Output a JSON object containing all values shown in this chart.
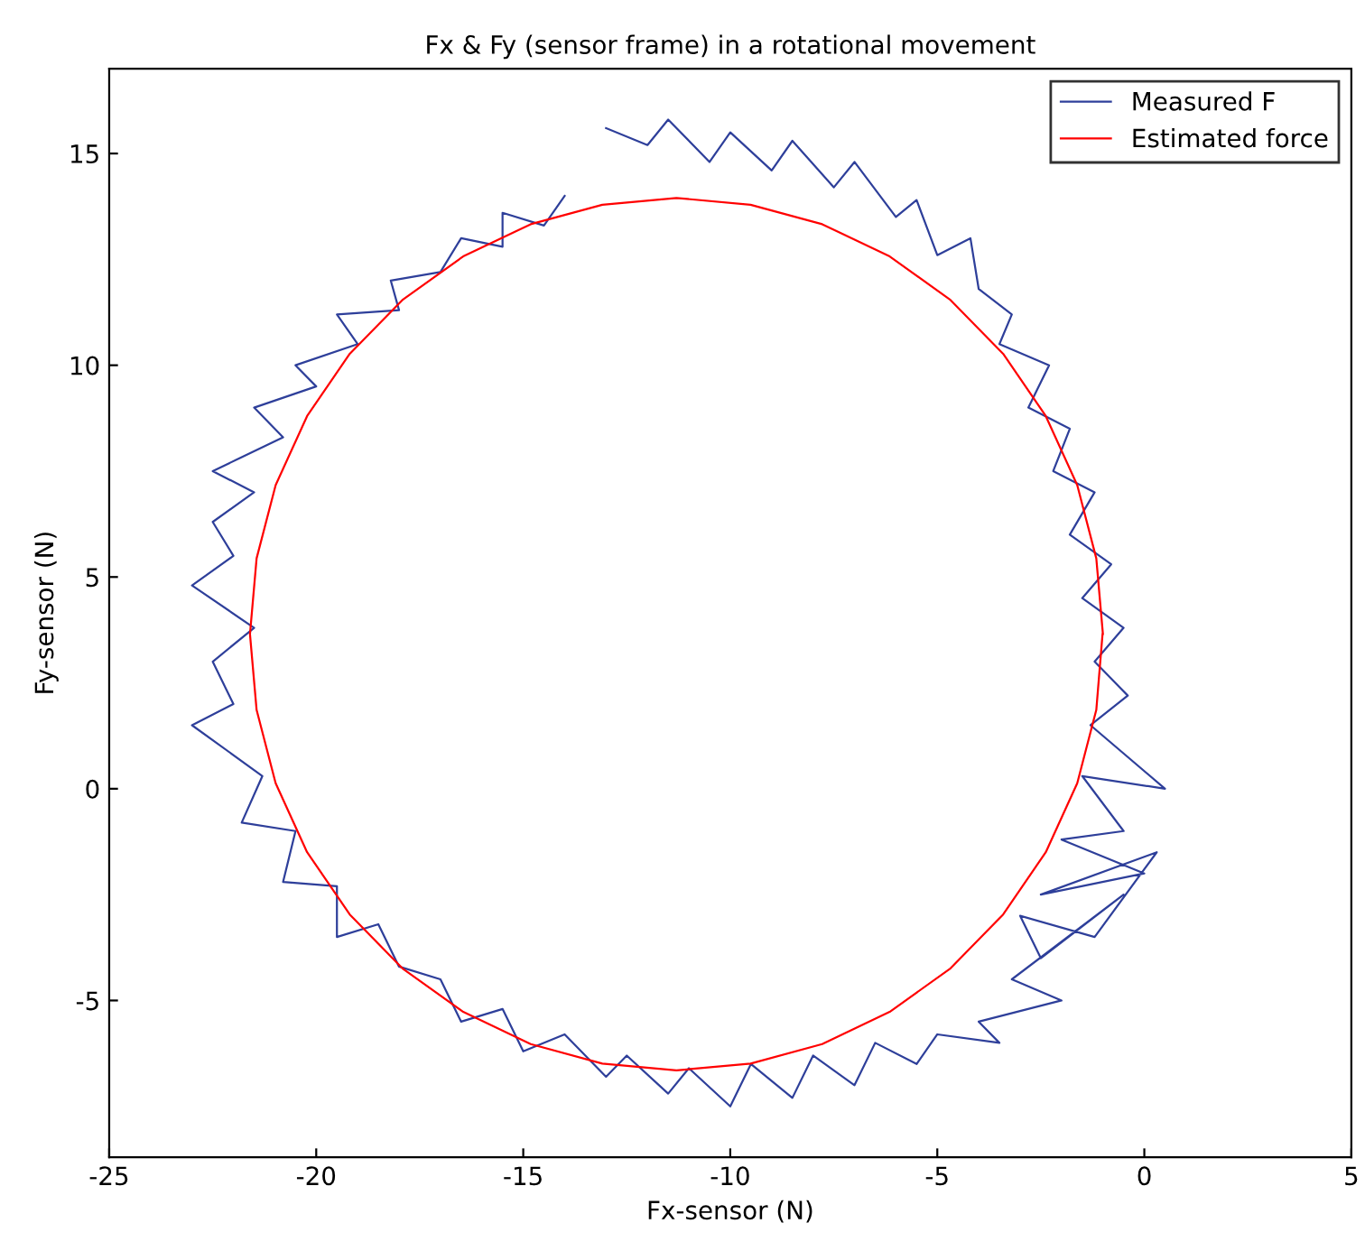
{
  "chart_data": {
    "type": "line",
    "title": "Fx & Fy (sensor frame) in a rotational movement",
    "xlabel": "Fx-sensor (N)",
    "ylabel": "Fy-sensor (N)",
    "xlim": [
      -25,
      5
    ],
    "ylim": [
      -8.7,
      17
    ],
    "xticks": [
      -25,
      -20,
      -15,
      -10,
      -5,
      0,
      5
    ],
    "yticks": [
      -5,
      0,
      5,
      10,
      15
    ],
    "grid": false,
    "legend": "top right",
    "marker": "none",
    "line_style": "solid",
    "series": [
      {
        "name": "Measured F",
        "color": "#2e3f9a",
        "x": [
          -13,
          -12,
          -11.5,
          -10.5,
          -10,
          -9,
          -8.5,
          -7.5,
          -7,
          -6,
          -5.5,
          -5,
          -4.2,
          -4,
          -3.2,
          -3.5,
          -2.3,
          -2.8,
          -1.8,
          -2.2,
          -1.2,
          -1.8,
          -0.8,
          -1.5,
          -0.5,
          -1.2,
          -0.4,
          -1.3,
          0.5,
          -1.5,
          -0.5,
          -2,
          0,
          -2.5,
          0.3,
          -1.2,
          -3,
          -2.5,
          -0.5,
          -3.2,
          -2,
          -4,
          -3.5,
          -5,
          -5.5,
          -6.5,
          -7,
          -8,
          -8.5,
          -9.5,
          -10,
          -11,
          -11.5,
          -12.5,
          -13,
          -14,
          -15,
          -15.5,
          -16.5,
          -17,
          -18,
          -18.5,
          -19.5,
          -19.5,
          -20.8,
          -20.5,
          -21.8,
          -21.3,
          -23,
          -22,
          -22.5,
          -21.5,
          -23,
          -22,
          -22.5,
          -21.5,
          -22.5,
          -20.8,
          -21.5,
          -20,
          -20.5,
          -19,
          -19.5,
          -18,
          -18.2,
          -17,
          -16.5,
          -15.5,
          -15.5,
          -14.5,
          -14
        ],
        "values": [
          15.6,
          15.2,
          15.8,
          14.8,
          15.5,
          14.6,
          15.3,
          14.2,
          14.8,
          13.5,
          13.9,
          12.6,
          13,
          11.8,
          11.2,
          10.5,
          10,
          9,
          8.5,
          7.5,
          7,
          6,
          5.3,
          4.5,
          3.8,
          3,
          2.2,
          1.5,
          0,
          0.3,
          -1,
          -1.2,
          -2,
          -2.5,
          -1.5,
          -3.5,
          -3,
          -4,
          -2.5,
          -4.5,
          -5,
          -5.5,
          -6,
          -5.8,
          -6.5,
          -6,
          -7,
          -6.3,
          -7.3,
          -6.5,
          -7.5,
          -6.6,
          -7.2,
          -6.3,
          -6.8,
          -5.8,
          -6.2,
          -5.2,
          -5.5,
          -4.5,
          -4.2,
          -3.2,
          -3.5,
          -2.3,
          -2.2,
          -1,
          -0.8,
          0.3,
          1.5,
          2,
          3,
          3.8,
          4.8,
          5.5,
          6.3,
          7,
          7.5,
          8.3,
          9,
          9.5,
          10,
          10.5,
          11.2,
          11.3,
          12,
          12.2,
          13,
          12.8,
          13.6,
          13.3,
          14
        ]
      },
      {
        "name": "Estimated force",
        "color": "#ff0000",
        "x": [
          -1.0,
          -1.16,
          -1.62,
          -2.38,
          -3.41,
          -4.68,
          -6.15,
          -7.78,
          -9.51,
          -11.3,
          -13.09,
          -14.82,
          -16.45,
          -17.92,
          -19.19,
          -20.22,
          -20.98,
          -21.44,
          -21.6,
          -21.44,
          -20.98,
          -20.22,
          -19.19,
          -17.92,
          -16.45,
          -14.82,
          -13.09,
          -11.3,
          -9.51,
          -7.78,
          -6.15,
          -4.68,
          -3.41,
          -2.38,
          -1.62,
          -1.16,
          -1.01
        ],
        "values": [
          3.65,
          5.44,
          7.17,
          8.8,
          10.27,
          11.54,
          12.57,
          13.33,
          13.79,
          13.95,
          13.79,
          13.33,
          12.57,
          11.54,
          10.27,
          8.8,
          7.17,
          5.44,
          3.65,
          1.86,
          0.13,
          -1.5,
          -2.97,
          -4.24,
          -5.27,
          -6.03,
          -6.49,
          -6.65,
          -6.49,
          -6.03,
          -5.27,
          -4.24,
          -2.97,
          -1.5,
          0.13,
          1.86,
          3.64
        ]
      }
    ]
  }
}
